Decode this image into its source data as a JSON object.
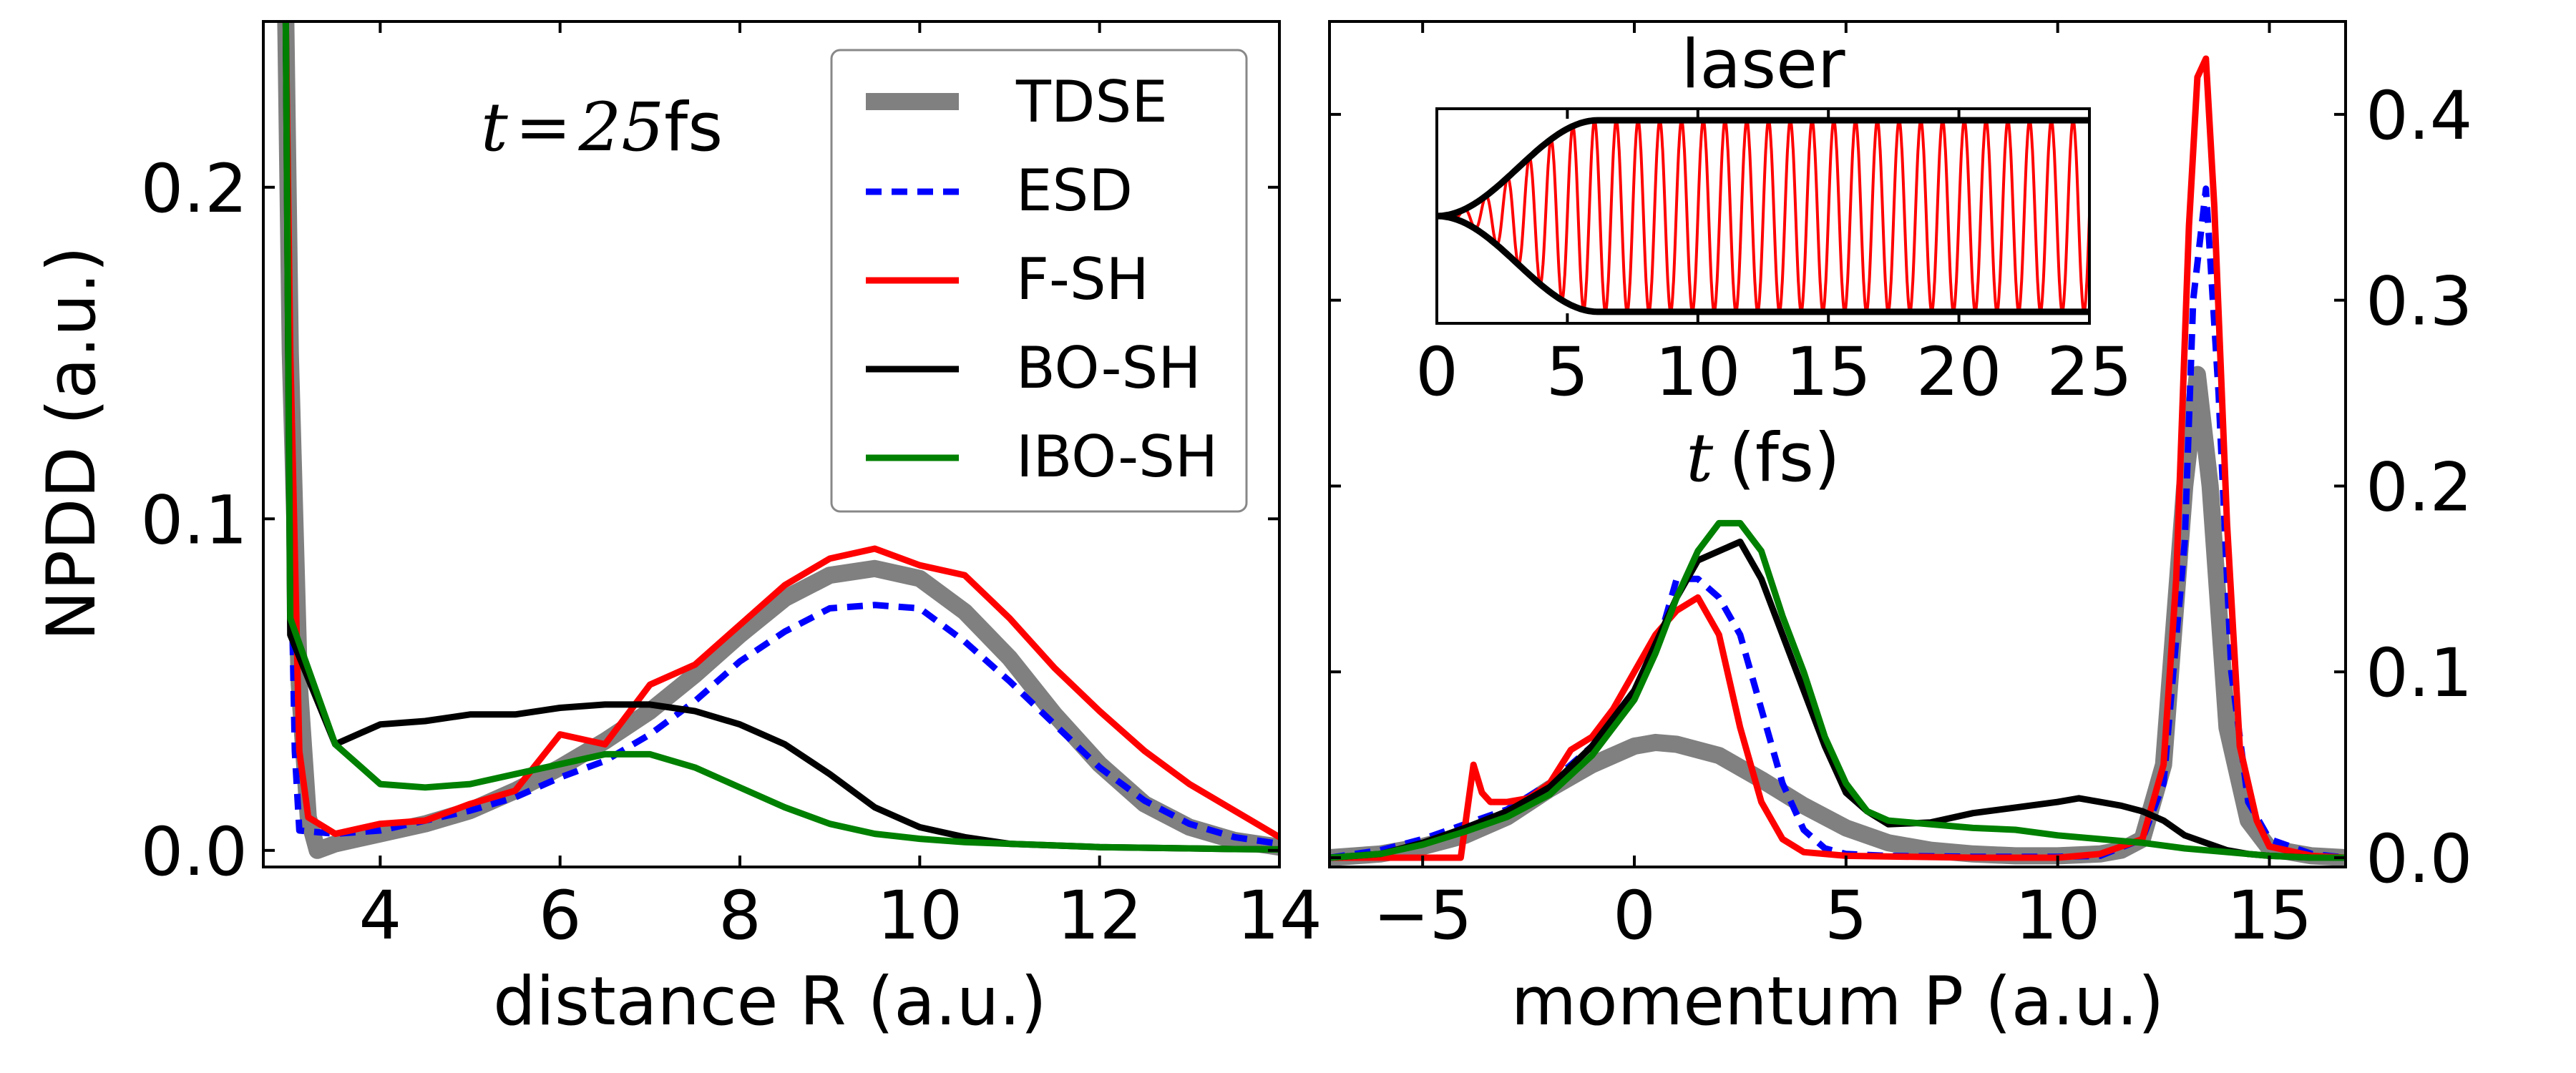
{
  "chart_data": [
    {
      "type": "line",
      "xlabel": "distance R (a.u.)",
      "ylabel": "NPDD (a.u.)",
      "xlim": [
        2.7,
        14.0
      ],
      "ylim": [
        -0.005,
        0.25
      ],
      "xticks": [
        4,
        6,
        8,
        10,
        12,
        14
      ],
      "yticks": [
        0.0,
        0.1,
        0.2
      ],
      "xtick_labels": [
        "4",
        "6",
        "8",
        "10",
        "12",
        "14"
      ],
      "ytick_labels": [
        "0.0",
        "0.1",
        "0.2"
      ],
      "annotation": {
        "var": "t",
        "eq": "=",
        "num": "25",
        "unit": "fs"
      },
      "legend_position": "top-right",
      "grid": false,
      "series": [
        {
          "name": "TDSE",
          "color": "#808080",
          "style": "thick",
          "x": [
            2.95,
            3.0,
            3.1,
            3.2,
            3.3,
            3.5,
            4,
            4.5,
            5,
            5.5,
            6,
            6.5,
            7,
            7.5,
            8,
            8.5,
            9,
            9.5,
            10,
            10.5,
            11,
            11.5,
            12,
            12.5,
            13,
            13.5,
            14
          ],
          "y": [
            0.25,
            0.15,
            0.05,
            0.01,
            0.0,
            0.002,
            0.005,
            0.008,
            0.012,
            0.018,
            0.025,
            0.033,
            0.042,
            0.053,
            0.065,
            0.076,
            0.083,
            0.085,
            0.082,
            0.072,
            0.058,
            0.041,
            0.026,
            0.014,
            0.007,
            0.003,
            0.001
          ]
        },
        {
          "name": "ESD",
          "color": "#0000ff",
          "style": "dashed",
          "x": [
            2.95,
            3.0,
            3.05,
            3.1,
            3.5,
            4,
            4.5,
            5,
            5.5,
            6,
            6.5,
            7,
            7.5,
            8,
            8.5,
            9,
            9.5,
            10,
            10.5,
            11,
            11.5,
            12,
            12.5,
            13,
            13.5,
            14
          ],
          "y": [
            0.25,
            0.1,
            0.03,
            0.006,
            0.005,
            0.006,
            0.009,
            0.012,
            0.016,
            0.022,
            0.027,
            0.035,
            0.045,
            0.057,
            0.066,
            0.073,
            0.074,
            0.073,
            0.063,
            0.051,
            0.038,
            0.025,
            0.015,
            0.008,
            0.004,
            0.002
          ]
        },
        {
          "name": "F-SH",
          "color": "#ff0000",
          "style": "solid",
          "x": [
            2.95,
            3.0,
            3.1,
            3.2,
            3.5,
            4,
            4.5,
            5,
            5.5,
            6,
            6.5,
            7,
            7.5,
            8,
            8.5,
            9,
            9.5,
            10,
            10.5,
            11,
            11.5,
            12,
            12.5,
            13,
            13.5,
            14
          ],
          "y": [
            0.25,
            0.15,
            0.03,
            0.01,
            0.005,
            0.008,
            0.009,
            0.014,
            0.018,
            0.035,
            0.032,
            0.05,
            0.056,
            0.068,
            0.08,
            0.088,
            0.091,
            0.086,
            0.083,
            0.07,
            0.055,
            0.042,
            0.03,
            0.02,
            0.012,
            0.004
          ]
        },
        {
          "name": "BO-SH",
          "color": "#000000",
          "style": "solid",
          "x": [
            2.95,
            3.0,
            3.5,
            4,
            4.5,
            5,
            5.5,
            6,
            6.5,
            7,
            7.5,
            8,
            8.5,
            9,
            9.5,
            10,
            10.5,
            11,
            11.5,
            12,
            12.5,
            13,
            13.5,
            14
          ],
          "y": [
            0.25,
            0.065,
            0.032,
            0.038,
            0.039,
            0.041,
            0.041,
            0.043,
            0.044,
            0.044,
            0.042,
            0.038,
            0.032,
            0.023,
            0.013,
            0.007,
            0.004,
            0.002,
            0.0015,
            0.001,
            0.0008,
            0.0006,
            0.0004,
            0.0003
          ]
        },
        {
          "name": "IBO-SH",
          "color": "#008000",
          "style": "solid",
          "x": [
            2.95,
            3.0,
            3.5,
            4,
            4.5,
            5,
            5.5,
            6,
            6.5,
            7,
            7.5,
            8,
            8.5,
            9,
            9.5,
            10,
            10.5,
            11,
            11.5,
            12,
            12.5,
            13,
            13.5,
            14
          ],
          "y": [
            0.25,
            0.07,
            0.032,
            0.02,
            0.019,
            0.02,
            0.023,
            0.026,
            0.029,
            0.029,
            0.025,
            0.019,
            0.013,
            0.008,
            0.005,
            0.0035,
            0.0025,
            0.002,
            0.0015,
            0.001,
            0.0008,
            0.0006,
            0.0004,
            0.0003
          ]
        }
      ]
    },
    {
      "type": "line",
      "xlabel": "momentum P (a.u.)",
      "ylabel": "",
      "xlim": [
        -7.2,
        16.8
      ],
      "ylim": [
        -0.005,
        0.45
      ],
      "xticks": [
        -5,
        0,
        5,
        10,
        15
      ],
      "yticks": [
        0.0,
        0.1,
        0.2,
        0.3,
        0.4
      ],
      "xtick_labels": [
        "−5",
        "0",
        "5",
        "10",
        "15"
      ],
      "ytick_labels": [
        "0.0",
        "0.1",
        "0.2",
        "0.3",
        "0.4"
      ],
      "yaxis_side": "right",
      "grid": false,
      "series": [
        {
          "name": "TDSE",
          "color": "#808080",
          "style": "thick",
          "x": [
            -7.2,
            -6,
            -5,
            -4,
            -3,
            -2,
            -1,
            0,
            0.5,
            1,
            2,
            3,
            4,
            5,
            6,
            7,
            8,
            9,
            10,
            11,
            11.5,
            12,
            12.5,
            13,
            13.3,
            13.6,
            14,
            14.5,
            15,
            16,
            16.8
          ],
          "y": [
            0.0,
            0.002,
            0.006,
            0.012,
            0.022,
            0.037,
            0.05,
            0.06,
            0.062,
            0.061,
            0.055,
            0.042,
            0.028,
            0.016,
            0.008,
            0.004,
            0.002,
            0.001,
            0.001,
            0.002,
            0.004,
            0.01,
            0.05,
            0.2,
            0.26,
            0.2,
            0.07,
            0.02,
            0.005,
            0.001,
            0.0
          ]
        },
        {
          "name": "ESD",
          "color": "#0000ff",
          "style": "dashed",
          "x": [
            -7.2,
            -6,
            -5,
            -4,
            -3,
            -2,
            -1,
            0,
            0.5,
            1,
            1.5,
            2,
            2.5,
            3,
            3.5,
            4,
            4.5,
            5,
            6,
            8,
            10,
            11,
            12,
            12.5,
            13,
            13.2,
            13.5,
            13.8,
            14.1,
            14.5,
            15,
            16,
            16.8
          ],
          "y": [
            0.0,
            0.004,
            0.01,
            0.018,
            0.026,
            0.04,
            0.06,
            0.09,
            0.11,
            0.15,
            0.15,
            0.14,
            0.12,
            0.08,
            0.04,
            0.015,
            0.005,
            0.002,
            0.001,
            0.0005,
            0.0005,
            0.001,
            0.01,
            0.04,
            0.17,
            0.3,
            0.36,
            0.25,
            0.1,
            0.03,
            0.01,
            0.002,
            0.0
          ]
        },
        {
          "name": "F-SH",
          "color": "#ff0000",
          "style": "solid",
          "x": [
            -7.2,
            -5,
            -4.5,
            -4.1,
            -3.8,
            -3.6,
            -3.4,
            -3,
            -2.5,
            -2,
            -1.5,
            -1,
            -0.5,
            0,
            0.5,
            1,
            1.5,
            2,
            2.5,
            3,
            3.5,
            4,
            5,
            8,
            10,
            11,
            12,
            12.5,
            12.8,
            13.1,
            13.3,
            13.5,
            13.7,
            14,
            14.3,
            14.7,
            15,
            16,
            16.8
          ],
          "y": [
            0.0,
            0.0,
            0.0,
            0.0,
            0.05,
            0.035,
            0.03,
            0.03,
            0.032,
            0.04,
            0.058,
            0.065,
            0.08,
            0.1,
            0.12,
            0.133,
            0.14,
            0.12,
            0.07,
            0.03,
            0.01,
            0.003,
            0.001,
            0.0,
            0.0,
            0.002,
            0.01,
            0.05,
            0.15,
            0.34,
            0.42,
            0.43,
            0.35,
            0.18,
            0.06,
            0.02,
            0.006,
            0.001,
            0.0
          ]
        },
        {
          "name": "BO-SH",
          "color": "#000000",
          "style": "solid",
          "x": [
            -7.2,
            -6,
            -5,
            -4,
            -3,
            -2,
            -1,
            0,
            0.5,
            1,
            1.5,
            2,
            2.5,
            3,
            3.5,
            4,
            4.5,
            5,
            5.5,
            6,
            7,
            8,
            9,
            10,
            10.5,
            11,
            11.5,
            12,
            12.5,
            13,
            13.5,
            14,
            14.5,
            15,
            16,
            16.8
          ],
          "y": [
            0.0,
            0.002,
            0.008,
            0.016,
            0.025,
            0.038,
            0.06,
            0.09,
            0.115,
            0.14,
            0.16,
            0.165,
            0.17,
            0.15,
            0.12,
            0.09,
            0.06,
            0.035,
            0.025,
            0.018,
            0.019,
            0.024,
            0.027,
            0.03,
            0.032,
            0.03,
            0.028,
            0.025,
            0.02,
            0.012,
            0.008,
            0.004,
            0.002,
            0.001,
            0.0,
            0.0
          ]
        },
        {
          "name": "IBO-SH",
          "color": "#008000",
          "style": "solid",
          "x": [
            -7.2,
            -6,
            -5,
            -4,
            -3,
            -2,
            -1,
            0,
            0.5,
            1,
            1.5,
            2,
            2.5,
            3,
            3.5,
            4,
            4.5,
            5,
            5.5,
            6,
            7,
            8,
            9,
            10,
            11,
            12,
            13,
            14,
            15,
            16,
            16.8
          ],
          "y": [
            0.0,
            0.002,
            0.007,
            0.014,
            0.022,
            0.034,
            0.055,
            0.085,
            0.11,
            0.14,
            0.165,
            0.18,
            0.18,
            0.165,
            0.13,
            0.1,
            0.065,
            0.04,
            0.025,
            0.02,
            0.018,
            0.016,
            0.015,
            0.012,
            0.01,
            0.008,
            0.005,
            0.003,
            0.001,
            0.0,
            0.0
          ]
        }
      ]
    },
    {
      "type": "line",
      "title": "laser",
      "xlabel": {
        "var": "t",
        "unit": "(fs)"
      },
      "xlim": [
        0,
        25
      ],
      "ylim": [
        -1.12,
        1.12
      ],
      "xticks": [
        0,
        5,
        10,
        15,
        20,
        25
      ],
      "xtick_labels": [
        "0",
        "5",
        "10",
        "15",
        "20",
        "25"
      ],
      "ramp_end_fs": 6.2,
      "n_cycles": 30,
      "grid": false,
      "series": [
        {
          "name": "field",
          "color": "#ff0000",
          "style": "solid"
        },
        {
          "name": "envelope",
          "color": "#000000",
          "style": "thick"
        }
      ]
    }
  ]
}
